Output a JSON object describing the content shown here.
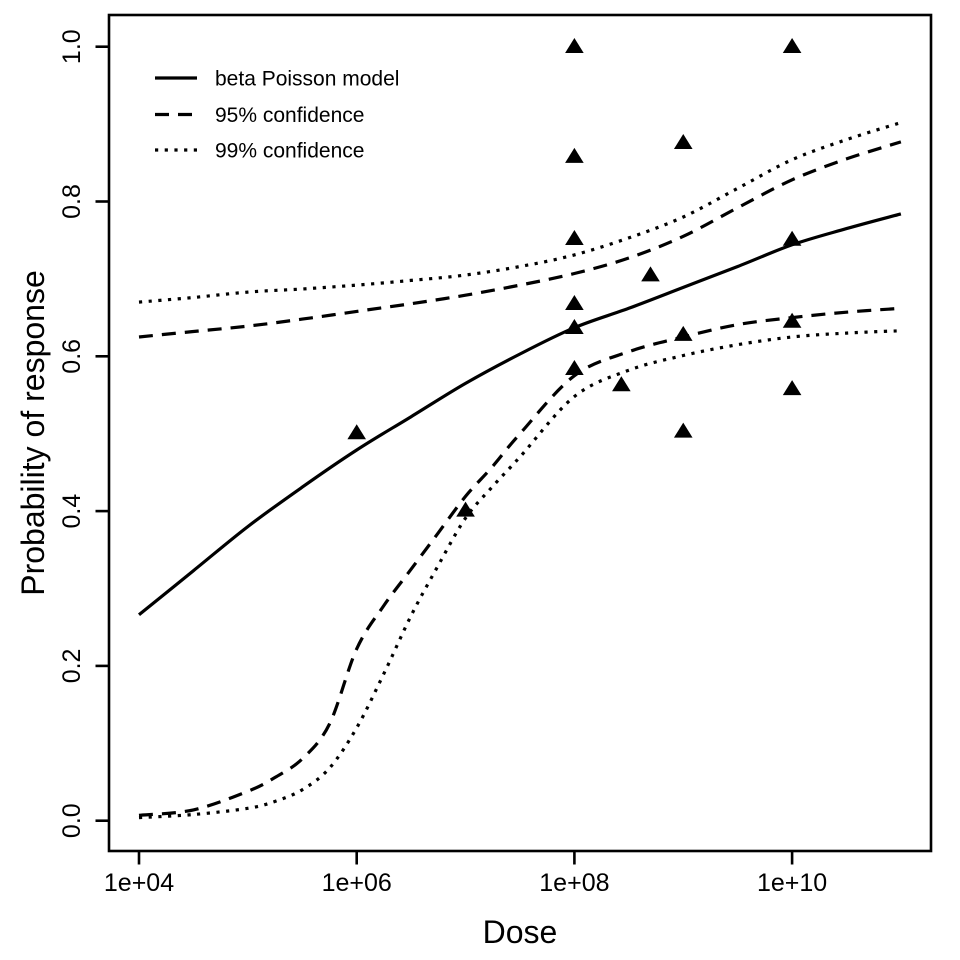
{
  "figure": {
    "background": "#ffffff",
    "foreground": "#000000"
  },
  "chart_data": {
    "type": "line",
    "title": "",
    "xlabel": "Dose",
    "ylabel": "Probability of response",
    "x_scale": "log10",
    "xlim_log10": [
      3.72,
      11.28
    ],
    "ylim": [
      -0.04,
      1.04
    ],
    "grid": false,
    "x_ticks": [
      {
        "label": "1e+04",
        "log10": 4
      },
      {
        "label": "1e+06",
        "log10": 6
      },
      {
        "label": "1e+08",
        "log10": 8
      },
      {
        "label": "1e+10",
        "log10": 10
      }
    ],
    "y_ticks": [
      {
        "label": "0.0",
        "value": 0.0
      },
      {
        "label": "0.2",
        "value": 0.2
      },
      {
        "label": "0.4",
        "value": 0.4
      },
      {
        "label": "0.6",
        "value": 0.6
      },
      {
        "label": "0.8",
        "value": 0.8
      },
      {
        "label": "1.0",
        "value": 1.0
      }
    ],
    "legend": {
      "position": "top-left",
      "box": false,
      "entries": [
        {
          "label": "beta Poisson model",
          "style": "solid"
        },
        {
          "label": "95% confidence",
          "style": "dashed"
        },
        {
          "label": "99% confidence",
          "style": "dotted"
        }
      ]
    },
    "series": [
      {
        "name": "beta Poisson model",
        "style": "solid",
        "x_log10": [
          4,
          4.5,
          5,
          5.5,
          6,
          6.5,
          7,
          7.5,
          8,
          8.5,
          9,
          9.5,
          10,
          10.5,
          11
        ],
        "y": [
          0.266,
          0.323,
          0.38,
          0.431,
          0.479,
          0.522,
          0.565,
          0.603,
          0.637,
          0.662,
          0.689,
          0.716,
          0.744,
          0.765,
          0.784
        ]
      },
      {
        "name": "95% confidence upper",
        "style": "dashed",
        "x_log10": [
          4,
          4.5,
          5,
          5.5,
          6,
          6.5,
          7,
          7.5,
          8,
          8.5,
          9,
          9.5,
          10,
          10.5,
          11
        ],
        "y": [
          0.625,
          0.632,
          0.639,
          0.648,
          0.658,
          0.668,
          0.679,
          0.692,
          0.707,
          0.727,
          0.755,
          0.792,
          0.828,
          0.855,
          0.877
        ]
      },
      {
        "name": "95% confidence lower",
        "style": "dashed",
        "x_log10": [
          4,
          4.5,
          5,
          5.25,
          5.5,
          5.75,
          6,
          6.25,
          6.5,
          6.75,
          7,
          7.25,
          7.5,
          8,
          8.5,
          9,
          9.5,
          10,
          10.5,
          11
        ],
        "y": [
          0.007,
          0.014,
          0.038,
          0.056,
          0.08,
          0.125,
          0.222,
          0.278,
          0.325,
          0.372,
          0.419,
          0.458,
          0.5,
          0.575,
          0.606,
          0.625,
          0.641,
          0.65,
          0.657,
          0.662
        ]
      },
      {
        "name": "99% confidence upper",
        "style": "dotted",
        "x_log10": [
          4,
          4.5,
          5,
          5.5,
          6,
          6.5,
          7,
          7.5,
          8,
          8.5,
          9,
          9.5,
          10,
          10.5,
          11
        ],
        "y": [
          0.67,
          0.676,
          0.683,
          0.687,
          0.692,
          0.698,
          0.705,
          0.716,
          0.731,
          0.753,
          0.78,
          0.817,
          0.854,
          0.88,
          0.902
        ]
      },
      {
        "name": "99% confidence lower",
        "style": "dotted",
        "x_log10": [
          4,
          4.5,
          5,
          5.25,
          5.5,
          5.75,
          6,
          6.25,
          6.5,
          6.75,
          7,
          7.25,
          7.5,
          8,
          8.5,
          9,
          9.5,
          10,
          10.5,
          11
        ],
        "y": [
          0.004,
          0.008,
          0.016,
          0.025,
          0.04,
          0.068,
          0.12,
          0.19,
          0.265,
          0.33,
          0.391,
          0.432,
          0.47,
          0.548,
          0.582,
          0.601,
          0.615,
          0.625,
          0.63,
          0.633
        ]
      }
    ],
    "points": {
      "marker": "filled-triangle-up",
      "color": "#000000",
      "data": [
        {
          "dose": 1000000.0,
          "p": 0.501
        },
        {
          "dose": 10000000.0,
          "p": 0.401
        },
        {
          "dose": 100000000.0,
          "p": 1.0
        },
        {
          "dose": 100000000.0,
          "p": 0.858
        },
        {
          "dose": 100000000.0,
          "p": 0.752
        },
        {
          "dose": 100000000.0,
          "p": 0.668
        },
        {
          "dose": 100000000.0,
          "p": 0.637
        },
        {
          "dose": 100000000.0,
          "p": 0.584
        },
        {
          "dose": 270000000.0,
          "p": 0.563
        },
        {
          "dose": 500000000.0,
          "p": 0.705
        },
        {
          "dose": 1000000000.0,
          "p": 0.876
        },
        {
          "dose": 1000000000.0,
          "p": 0.628
        },
        {
          "dose": 1000000000.0,
          "p": 0.503
        },
        {
          "dose": 10000000000.0,
          "p": 1.0
        },
        {
          "dose": 10000000000.0,
          "p": 0.751
        },
        {
          "dose": 10000000000.0,
          "p": 0.645
        },
        {
          "dose": 10000000000.0,
          "p": 0.558
        }
      ]
    }
  }
}
